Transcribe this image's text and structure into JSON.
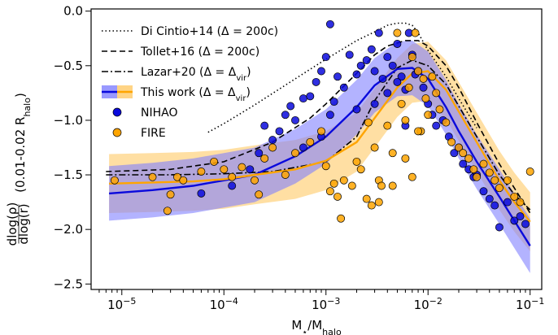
{
  "chart_data": {
    "type": "scatter",
    "x_scale": "log",
    "xlim": [
      5e-06,
      0.13
    ],
    "ylim": [
      -2.55,
      0.02
    ],
    "x_ticks": [
      {
        "value": 1e-05,
        "base": "10",
        "exp": "−5"
      },
      {
        "value": 0.0001,
        "base": "10",
        "exp": "−4"
      },
      {
        "value": 0.001,
        "base": "10",
        "exp": "−3"
      },
      {
        "value": 0.01,
        "base": "10",
        "exp": "−2"
      },
      {
        "value": 0.1,
        "base": "10",
        "exp": "−1"
      }
    ],
    "y_ticks": [
      {
        "value": 0.0,
        "label": "0.0"
      },
      {
        "value": -0.5,
        "label": "−0.5"
      },
      {
        "value": -1.0,
        "label": "−1.0"
      },
      {
        "value": -1.5,
        "label": "−1.5"
      },
      {
        "value": -2.0,
        "label": "−2.0"
      },
      {
        "value": -2.5,
        "label": "−2.5"
      }
    ],
    "xlabel": {
      "main": "M",
      "sub1": "⋆",
      "sep": "/M",
      "sub2": "halo"
    },
    "ylabel": {
      "prefix": "(0.01-0.02 R",
      "sub": "halo",
      "suffix": ")",
      "frac_num": "dlog(ρ)",
      "frac_den": "dlog(r)"
    },
    "colors": {
      "nihao": "#0a0adc",
      "fire": "#ffa500",
      "nihao_band": "#8080ff",
      "fire_band": "#ffc966"
    },
    "legend": {
      "position": "top-left",
      "entries": [
        {
          "style": "dotted",
          "label": "Di Cintio+14 (Δ = 200c)"
        },
        {
          "style": "dashed",
          "label": "Tollet+16 (Δ = 200c)"
        },
        {
          "style": "dashdot",
          "label_main": "Lazar+20 (Δ = Δ",
          "label_sub": "vir",
          "label_end": ")"
        },
        {
          "style": "band",
          "label_main": "This work (Δ = Δ",
          "label_sub": "vir",
          "label_end": ")"
        },
        {
          "style": "nihao-marker",
          "label": "NIHAO"
        },
        {
          "style": "fire-marker",
          "label": "FIRE"
        }
      ]
    },
    "series": [
      {
        "name": "Di Cintio+14 (Δ = 200c)",
        "style": "dotted",
        "x": [
          7e-05,
          0.0001,
          0.0002,
          0.0005,
          0.001,
          0.002,
          0.003,
          0.004,
          0.005,
          0.006,
          0.007,
          0.008,
          0.01,
          0.015,
          0.02,
          0.03
        ],
        "y": [
          -1.11,
          -1.03,
          -0.86,
          -0.62,
          -0.44,
          -0.27,
          -0.19,
          -0.13,
          -0.11,
          -0.11,
          -0.13,
          -0.2,
          -0.36,
          -0.6,
          -0.8,
          -1.07
        ]
      },
      {
        "name": "Tollet+16 (Δ = 200c)",
        "style": "dashed",
        "x": [
          7e-06,
          3e-05,
          0.0001,
          0.0003,
          0.0007,
          0.001,
          0.002,
          0.003,
          0.004,
          0.006,
          0.008,
          0.01,
          0.015,
          0.02,
          0.03,
          0.05,
          0.07,
          0.1
        ],
        "y": [
          -1.47,
          -1.45,
          -1.38,
          -1.2,
          -0.98,
          -0.85,
          -0.57,
          -0.4,
          -0.32,
          -0.27,
          -0.27,
          -0.32,
          -0.5,
          -0.7,
          -1.02,
          -1.4,
          -1.62,
          -1.85
        ]
      },
      {
        "name": "Lazar+20 (Δ = Δvir)",
        "style": "dashdot",
        "x": [
          7e-06,
          3e-05,
          0.0001,
          0.0003,
          0.001,
          0.002,
          0.003,
          0.005,
          0.007,
          0.01,
          0.015,
          0.02,
          0.03,
          0.05,
          0.07,
          0.1
        ],
        "y": [
          -1.5,
          -1.5,
          -1.49,
          -1.47,
          -1.38,
          -1.15,
          -0.82,
          -0.52,
          -0.45,
          -0.5,
          -0.67,
          -0.87,
          -1.15,
          -1.5,
          -1.68,
          -1.82
        ]
      },
      {
        "name": "This work NIHAO",
        "style": "band",
        "color": "#0a0adc",
        "x": [
          7.5e-06,
          2e-05,
          5e-05,
          0.0001,
          0.0002,
          0.0005,
          0.001,
          0.002,
          0.003,
          0.005,
          0.007,
          0.01,
          0.015,
          0.02,
          0.03,
          0.05,
          0.07,
          0.1
        ],
        "y": [
          -1.67,
          -1.64,
          -1.6,
          -1.55,
          -1.5,
          -1.33,
          -1.15,
          -0.88,
          -0.68,
          -0.53,
          -0.52,
          -0.62,
          -0.88,
          -1.1,
          -1.38,
          -1.7,
          -1.92,
          -2.15
        ],
        "band": 0.25
      },
      {
        "name": "This work FIRE",
        "style": "band",
        "color": "#ffa500",
        "x": [
          7.5e-06,
          2e-05,
          5e-05,
          0.0001,
          0.0002,
          0.0005,
          0.001,
          0.002,
          0.003,
          0.005,
          0.007,
          0.01,
          0.015,
          0.02,
          0.03,
          0.05,
          0.07,
          0.1
        ],
        "y": [
          -1.58,
          -1.57,
          -1.56,
          -1.54,
          -1.5,
          -1.45,
          -1.37,
          -1.2,
          -0.98,
          -0.7,
          -0.57,
          -0.55,
          -0.72,
          -0.92,
          -1.2,
          -1.55,
          -1.75,
          -1.93
        ],
        "band": 0.27
      },
      {
        "name": "NIHAO",
        "style": "marker",
        "color": "#0a0adc",
        "x": [
          6e-05,
          0.00012,
          0.00018,
          0.00022,
          0.00025,
          0.0003,
          0.00035,
          0.0004,
          0.00045,
          0.0005,
          0.0006,
          0.0007,
          0.0008,
          0.0009,
          0.001,
          0.0011,
          0.0012,
          0.0013,
          0.0015,
          0.0017,
          0.002,
          0.0022,
          0.0025,
          0.0028,
          0.003,
          0.0033,
          0.0036,
          0.004,
          0.0045,
          0.005,
          0.0055,
          0.006,
          0.0065,
          0.007,
          0.0075,
          0.008,
          0.009,
          0.01,
          0.011,
          0.012,
          0.014,
          0.016,
          0.018,
          0.02,
          0.022,
          0.025,
          0.028,
          0.03,
          0.035,
          0.04,
          0.045,
          0.05,
          0.06,
          0.07,
          0.08,
          0.09,
          0.0011,
          0.0009,
          0.0006,
          0.002,
          0.003,
          0.004,
          0.005,
          0.006
        ],
        "y": [
          -1.67,
          -1.6,
          -1.45,
          -1.3,
          -1.05,
          -1.18,
          -1.1,
          -0.95,
          -0.87,
          -1.0,
          -0.8,
          -0.78,
          -0.65,
          -0.55,
          -0.42,
          -0.12,
          -0.83,
          -0.6,
          -0.7,
          -0.4,
          -0.58,
          -0.5,
          -0.45,
          -0.35,
          -0.55,
          -0.2,
          -0.62,
          -0.42,
          -0.5,
          -0.3,
          -0.6,
          -0.72,
          -0.2,
          -0.4,
          -0.58,
          -0.55,
          -0.7,
          -0.85,
          -0.95,
          -1.05,
          -1.0,
          -1.15,
          -1.3,
          -1.25,
          -1.4,
          -1.45,
          -1.52,
          -1.5,
          -1.65,
          -1.72,
          -1.78,
          -1.98,
          -1.75,
          -1.92,
          -1.88,
          -1.95,
          -0.95,
          -1.15,
          -1.25,
          -0.9,
          -0.85,
          -0.75,
          -0.65,
          -1.05
        ]
      },
      {
        "name": "FIRE",
        "style": "marker",
        "color": "#ffa500",
        "x": [
          8.5e-06,
          2e-05,
          2.8e-05,
          3e-05,
          3.5e-05,
          4e-05,
          6e-05,
          8e-05,
          0.0001,
          0.00012,
          0.00015,
          0.0002,
          0.00022,
          0.00025,
          0.0003,
          0.0004,
          0.0005,
          0.0007,
          0.0009,
          0.001,
          0.0011,
          0.0013,
          0.0015,
          0.0018,
          0.002,
          0.0022,
          0.0025,
          0.0028,
          0.003,
          0.0033,
          0.0035,
          0.004,
          0.0045,
          0.005,
          0.0055,
          0.006,
          0.0065,
          0.007,
          0.0075,
          0.008,
          0.0085,
          0.009,
          0.01,
          0.011,
          0.012,
          0.013,
          0.015,
          0.017,
          0.02,
          0.022,
          0.025,
          0.028,
          0.03,
          0.035,
          0.04,
          0.045,
          0.05,
          0.06,
          0.07,
          0.08,
          0.1,
          0.0033,
          0.0045,
          0.006,
          0.007,
          0.008,
          0.0095,
          0.0012,
          0.0026,
          0.0014
        ],
        "y": [
          -1.55,
          -1.52,
          -1.83,
          -1.68,
          -1.52,
          -1.55,
          -1.47,
          -1.38,
          -1.45,
          -1.52,
          -1.43,
          -1.55,
          -1.68,
          -1.35,
          -1.25,
          -1.5,
          -1.3,
          -1.2,
          -1.1,
          -1.42,
          -1.65,
          -1.7,
          -1.55,
          -1.6,
          -1.38,
          -1.45,
          -1.72,
          -1.78,
          -1.25,
          -1.55,
          -1.6,
          -1.05,
          -1.3,
          -0.2,
          -0.85,
          -1.0,
          -0.7,
          -0.42,
          -0.2,
          -0.55,
          -1.1,
          -0.62,
          -0.95,
          -0.6,
          -0.75,
          -0.9,
          -1.02,
          -1.2,
          -1.25,
          -1.3,
          -1.35,
          -1.45,
          -1.52,
          -1.4,
          -1.48,
          -1.55,
          -1.62,
          -1.55,
          -1.7,
          -1.75,
          -1.47,
          -1.75,
          -1.6,
          -1.35,
          -1.52,
          -1.1,
          -0.8,
          -1.58,
          -1.02,
          -1.9
        ]
      }
    ]
  }
}
